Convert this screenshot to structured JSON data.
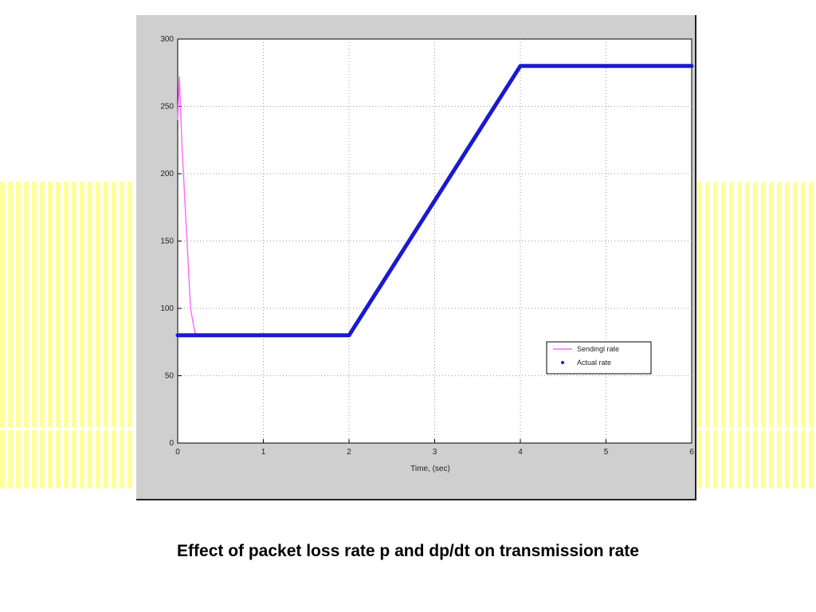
{
  "caption": "Effect of packet loss rate p and dp/dt on transmission rate",
  "chart_data": {
    "type": "line",
    "title": "",
    "xlabel": "Time, (sec)",
    "ylabel": "",
    "xlim": [
      0,
      6
    ],
    "ylim": [
      0,
      300
    ],
    "x_ticks": [
      "0",
      "1",
      "2",
      "3",
      "4",
      "5",
      "6"
    ],
    "y_ticks": [
      "0",
      "50",
      "100",
      "150",
      "200",
      "250",
      "300"
    ],
    "grid": true,
    "legend_position": "lower-right",
    "series": [
      {
        "name": "Sending rate",
        "color": "#ff66ff",
        "style": "thin-line",
        "x": [
          0,
          0.02,
          0.05,
          0.1,
          0.15,
          0.2,
          0.25
        ],
        "y": [
          240,
          272,
          220,
          160,
          100,
          82,
          80
        ]
      },
      {
        "name": "Actual rate",
        "color": "#1a1acc",
        "style": "thick-dotted",
        "x": [
          0,
          2,
          4,
          6
        ],
        "y": [
          80,
          80,
          280,
          280
        ]
      }
    ],
    "legend": [
      {
        "label": "Sendingl rate",
        "marker": "line",
        "color": "#ff66ff"
      },
      {
        "label": "Actual rate",
        "marker": "dot",
        "color": "#1a1acc"
      }
    ]
  }
}
